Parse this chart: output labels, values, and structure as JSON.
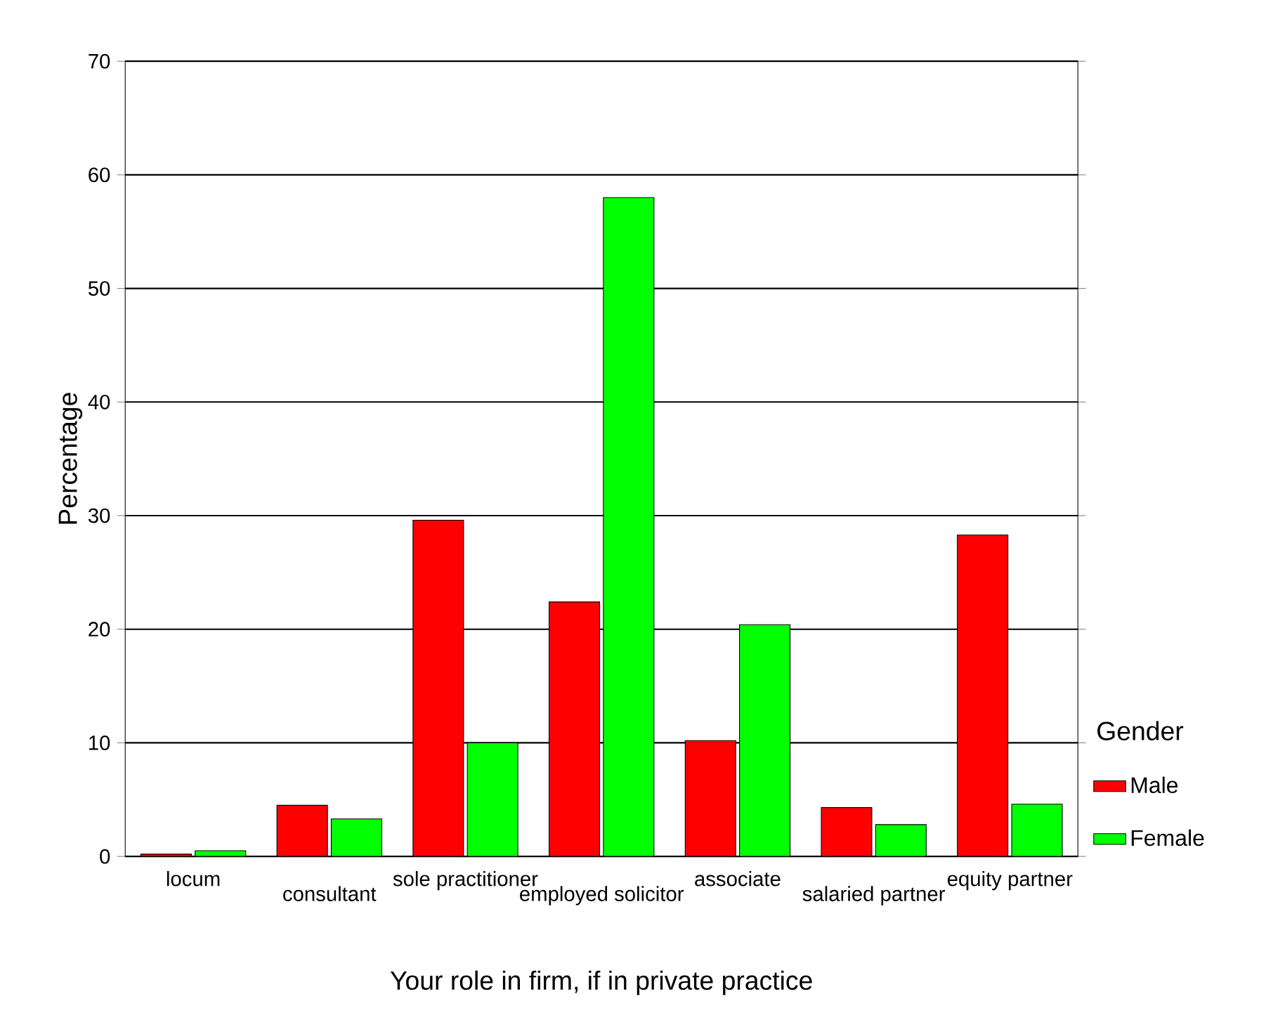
{
  "chart_data": {
    "type": "bar",
    "xlabel": "Your role in firm, if in private practice",
    "ylabel": "Percentage",
    "legend_title": "Gender",
    "categories": [
      "locum",
      "consultant",
      "sole practitioner",
      "employed solicitor",
      "associate",
      "salaried partner",
      "equity partner"
    ],
    "series": [
      {
        "name": "Male",
        "color": "#ff0000",
        "values": [
          0.2,
          4.5,
          29.6,
          22.4,
          10.2,
          4.3,
          28.3
        ]
      },
      {
        "name": "Female",
        "color": "#00ff00",
        "values": [
          0.5,
          3.3,
          10.0,
          58.0,
          20.4,
          2.8,
          4.6
        ]
      }
    ],
    "ylim": [
      0,
      70
    ],
    "yticks": [
      0,
      10,
      20,
      30,
      40,
      50,
      60,
      70
    ],
    "grid": "y",
    "legend": "right"
  }
}
